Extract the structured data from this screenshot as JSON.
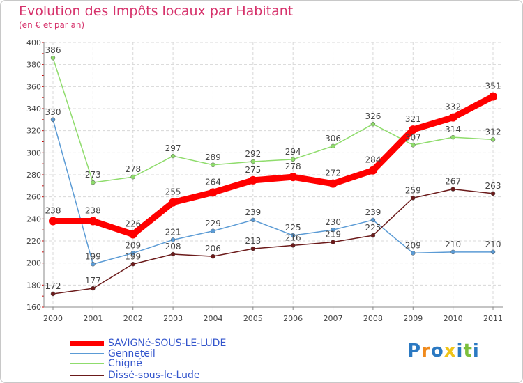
{
  "chart_data": {
    "type": "line",
    "title": "Evolution des Impôts locaux par Habitant",
    "subtitle": "(en € et par an)",
    "categories": [
      "2000",
      "2001",
      "2002",
      "2003",
      "2004",
      "2005",
      "2006",
      "2007",
      "2008",
      "2009",
      "2010",
      "2011"
    ],
    "ylim": [
      160,
      400
    ],
    "yticks": [
      160,
      180,
      200,
      220,
      240,
      260,
      280,
      300,
      320,
      340,
      360,
      380,
      400
    ],
    "grid": true,
    "series": [
      {
        "name": "SAVIGNé-SOUS-LE-LUDE",
        "color": "#ff0000",
        "highlight": true,
        "values": [
          238,
          238,
          226,
          255,
          264,
          275,
          278,
          272,
          284,
          321,
          332,
          351
        ]
      },
      {
        "name": "Genneteil",
        "color": "#5b9bd5",
        "highlight": false,
        "values": [
          330,
          199,
          209,
          221,
          229,
          239,
          225,
          230,
          239,
          209,
          210,
          210
        ]
      },
      {
        "name": "Chigné",
        "color": "#8fdc6c",
        "highlight": false,
        "values": [
          386,
          273,
          278,
          297,
          289,
          292,
          294,
          306,
          326,
          307,
          314,
          312
        ]
      },
      {
        "name": "Dissé-sous-le-Lude",
        "color": "#6b1a1a",
        "highlight": false,
        "values": [
          172,
          177,
          199,
          208,
          206,
          213,
          216,
          219,
          225,
          259,
          267,
          263
        ]
      }
    ]
  },
  "logo": {
    "text": "Proxiti",
    "colors": [
      "#2b79c2",
      "#f08a1c",
      "#2b79c2",
      "#f0c419",
      "#2b79c2",
      "#7cbf3b",
      "#2b79c2"
    ]
  }
}
